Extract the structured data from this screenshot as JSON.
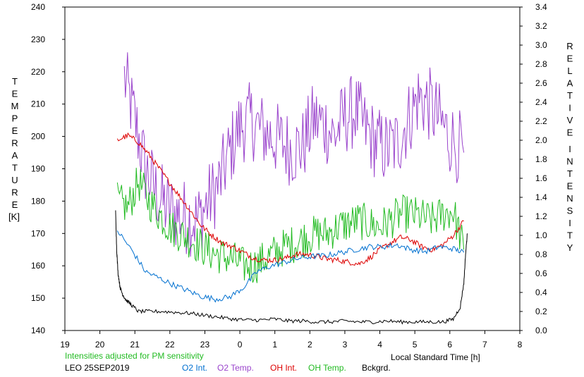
{
  "chart_data": {
    "type": "line",
    "left_axis": {
      "label_letters": [
        "T",
        "E",
        "M",
        "P",
        "E",
        "R",
        "A",
        "T",
        "U",
        "R",
        "E"
      ],
      "unit": "[K]",
      "range": [
        140,
        240
      ],
      "ticks": [
        "240",
        "230",
        "220",
        "210",
        "200",
        "190",
        "180",
        "170",
        "160",
        "150",
        "140"
      ]
    },
    "right_axis": {
      "label_word1": [
        "R",
        "E",
        "L",
        "A",
        "T",
        "I",
        "V",
        "E"
      ],
      "label_word2": [
        "I",
        "N",
        "T",
        "E",
        "N",
        "S",
        "I",
        "T",
        "Y"
      ],
      "range": [
        0.0,
        3.4
      ],
      "ticks": [
        "3.4",
        "3.2",
        "3.0",
        "2.8",
        "2.6",
        "2.4",
        "2.2",
        "2.0",
        "1.8",
        "1.6",
        "1.4",
        "1.2",
        "1.0",
        "0.8",
        "0.6",
        "0.4",
        "0.2",
        "0.0"
      ]
    },
    "x_axis": {
      "label": "Local Standard Time [h]",
      "ticks": [
        "19",
        "20",
        "21",
        "22",
        "23",
        "0",
        "1",
        "2",
        "3",
        "4",
        "5",
        "6",
        "7",
        "8"
      ]
    },
    "note": "Intensities adjusted for PM sensitivity",
    "station": "LEO 25SEP2019",
    "series": [
      {
        "name": "O2 Int.",
        "color": "#0070d0",
        "axis": "right",
        "x": [
          20.5,
          20.9,
          21.3,
          21.7,
          22.1,
          22.5,
          22.9,
          23.3,
          23.7,
          24.1,
          24.5,
          24.9,
          25.3,
          25.7,
          26.1,
          26.5,
          26.9,
          27.3,
          27.7,
          28.1,
          28.5,
          28.9,
          29.3,
          29.7,
          30.1,
          30.4
        ],
        "y": [
          1.05,
          0.85,
          0.62,
          0.55,
          0.48,
          0.42,
          0.36,
          0.33,
          0.35,
          0.45,
          0.62,
          0.68,
          0.72,
          0.76,
          0.78,
          0.79,
          0.82,
          0.85,
          0.88,
          0.88,
          0.9,
          0.85,
          0.83,
          0.88,
          0.86,
          0.82
        ]
      },
      {
        "name": "O2 Temp.",
        "color": "#9a44cc",
        "axis": "left",
        "x": [
          20.7,
          21.0,
          21.3,
          21.6,
          21.9,
          22.2,
          22.5,
          22.8,
          23.1,
          23.4,
          23.7,
          24.0,
          24.3,
          24.6,
          24.9,
          25.2,
          25.5,
          25.8,
          26.1,
          26.4,
          26.7,
          27.0,
          27.3,
          27.6,
          27.9,
          28.2,
          28.5,
          28.8,
          29.1,
          29.4,
          29.7,
          30.0,
          30.4
        ],
        "y": [
          218,
          205,
          190,
          183,
          178,
          176,
          175,
          174,
          180,
          185,
          195,
          203,
          205,
          202,
          200,
          198,
          196,
          197,
          205,
          204,
          200,
          206,
          208,
          202,
          198,
          196,
          198,
          205,
          212,
          210,
          205,
          200,
          195
        ]
      },
      {
        "name": "OH Int.",
        "color": "#dd0000",
        "axis": "right",
        "x": [
          20.5,
          20.8,
          21.1,
          21.4,
          21.7,
          22.0,
          22.3,
          22.6,
          22.9,
          23.2,
          23.5,
          23.8,
          24.1,
          24.4,
          24.7,
          25.0,
          25.3,
          25.6,
          25.9,
          26.2,
          26.5,
          26.8,
          27.1,
          27.4,
          27.7,
          28.0,
          28.3,
          28.6,
          28.9,
          29.2,
          29.5,
          29.8,
          30.1,
          30.4
        ],
        "y": [
          2.0,
          2.05,
          1.98,
          1.85,
          1.7,
          1.55,
          1.4,
          1.25,
          1.1,
          1.0,
          0.92,
          0.88,
          0.82,
          0.76,
          0.74,
          0.74,
          0.76,
          0.8,
          0.8,
          0.78,
          0.75,
          0.74,
          0.72,
          0.7,
          0.76,
          0.85,
          0.92,
          0.98,
          0.95,
          0.88,
          0.85,
          0.9,
          1.0,
          1.15
        ]
      },
      {
        "name": "OH Temp.",
        "color": "#22bb22",
        "axis": "left",
        "x": [
          20.5,
          20.8,
          21.1,
          21.4,
          21.7,
          22.0,
          22.3,
          22.6,
          22.9,
          23.2,
          23.5,
          23.8,
          24.1,
          24.4,
          24.7,
          25.0,
          25.3,
          25.6,
          25.9,
          26.2,
          26.5,
          26.8,
          27.1,
          27.4,
          27.7,
          28.0,
          28.3,
          28.6,
          28.9,
          29.2,
          29.5,
          29.8,
          30.1,
          30.4
        ],
        "y": [
          180,
          178,
          186,
          180,
          176,
          172,
          170,
          168,
          166,
          164,
          163,
          162,
          160,
          160,
          162,
          164,
          166,
          167,
          169,
          170,
          170,
          172,
          173,
          174,
          173,
          172,
          174,
          176,
          176,
          175,
          174,
          176,
          177,
          165
        ]
      },
      {
        "name": "Bckgrd.",
        "color": "#000000",
        "axis": "right",
        "x": [
          20.45,
          20.48,
          20.52,
          20.58,
          20.65,
          20.75,
          20.9,
          21.1,
          21.4,
          21.8,
          22.2,
          22.6,
          23.0,
          23.4,
          23.8,
          24.2,
          24.6,
          25.0,
          25.4,
          25.8,
          26.2,
          26.6,
          27.0,
          27.4,
          27.8,
          28.2,
          28.6,
          29.0,
          29.4,
          29.8,
          30.1,
          30.3,
          30.4,
          30.45,
          30.5
        ],
        "y": [
          1.25,
          0.85,
          0.6,
          0.45,
          0.38,
          0.32,
          0.27,
          0.2,
          0.2,
          0.2,
          0.19,
          0.18,
          0.16,
          0.14,
          0.12,
          0.11,
          0.11,
          0.12,
          0.1,
          0.1,
          0.09,
          0.09,
          0.1,
          0.09,
          0.09,
          0.1,
          0.09,
          0.09,
          0.09,
          0.09,
          0.12,
          0.25,
          0.5,
          0.8,
          1.02
        ]
      }
    ]
  }
}
